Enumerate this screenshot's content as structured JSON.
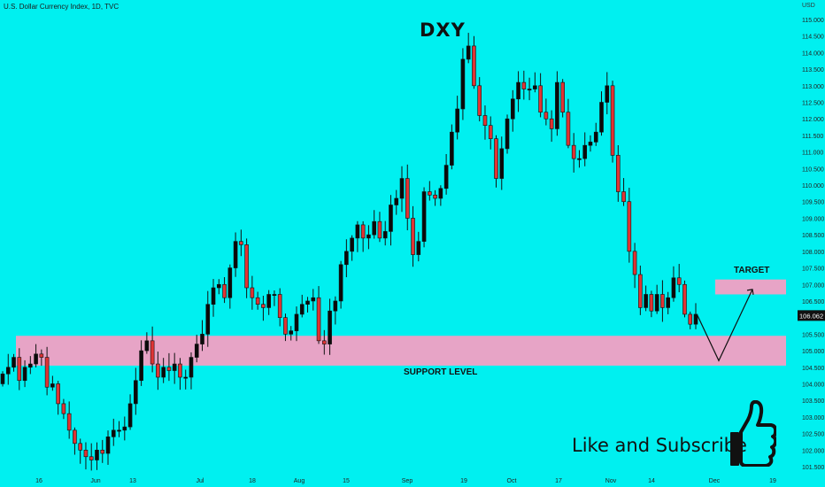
{
  "header": {
    "symbol_info": "U.S. Dollar Currency Index, 1D, TVC",
    "currency": "USD"
  },
  "title": "DXY",
  "annotations": {
    "target": "TARGET",
    "support": "SUPPORT LEVEL",
    "cta": "Like and Subscribe"
  },
  "icons": {
    "thumb": "thumbs-up-icon"
  },
  "colors": {
    "background": "#00f0f0",
    "zone": "#e7a4c6",
    "up": "#0a0a0a",
    "down": "#e03434",
    "price_tag": "#111111"
  },
  "chart_data": {
    "type": "candlestick",
    "title": "DXY",
    "ylabel": "USD",
    "ylim": [
      101.25,
      115.25
    ],
    "y_ticks": [
      "115.000",
      "114.500",
      "114.000",
      "113.500",
      "113.000",
      "112.500",
      "112.000",
      "111.500",
      "111.000",
      "110.500",
      "110.000",
      "109.500",
      "109.000",
      "108.500",
      "108.000",
      "107.500",
      "107.000",
      "106.500",
      "106.000",
      "105.500",
      "105.000",
      "104.500",
      "104.000",
      "103.500",
      "103.000",
      "102.500",
      "102.000",
      "101.500"
    ],
    "x_ticks": [
      "16",
      "Jun",
      "13",
      "Jul",
      "18",
      "Aug",
      "15",
      "Sep",
      "19",
      "Oct",
      "17",
      "Nov",
      "14",
      "Dec",
      "19"
    ],
    "current_price": "106.062",
    "support_zone": [
      104.55,
      105.45
    ],
    "target_zone": [
      106.7,
      107.15
    ],
    "projection": [
      106.06,
      104.7,
      106.85
    ],
    "close_prices": [
      104.3,
      104.5,
      104.8,
      104.1,
      104.5,
      104.6,
      104.9,
      104.8,
      103.9,
      104.0,
      103.4,
      103.1,
      102.6,
      102.2,
      102.0,
      101.8,
      101.7,
      102.0,
      101.9,
      102.4,
      102.6,
      102.6,
      102.7,
      103.4,
      104.1,
      105.0,
      105.3,
      104.6,
      104.2,
      104.5,
      104.4,
      104.6,
      104.2,
      104.2,
      104.8,
      105.2,
      105.5,
      106.4,
      106.9,
      107.0,
      106.6,
      107.5,
      108.3,
      108.2,
      106.9,
      106.6,
      106.4,
      106.3,
      106.7,
      106.7,
      106.0,
      105.5,
      105.6,
      106.1,
      106.4,
      106.5,
      106.6,
      105.3,
      105.2,
      106.2,
      106.5,
      107.6,
      108.0,
      108.4,
      108.8,
      108.4,
      108.5,
      108.9,
      108.4,
      108.6,
      109.4,
      109.6,
      110.2,
      109.0,
      107.9,
      108.3,
      109.8,
      109.7,
      109.6,
      109.9,
      110.6,
      111.6,
      112.3,
      113.8,
      114.2,
      113.0,
      112.1,
      111.8,
      111.4,
      110.2,
      111.1,
      112.0,
      112.6,
      113.1,
      112.9,
      112.9,
      113.0,
      112.2,
      112.0,
      111.7,
      113.1,
      112.2,
      111.2,
      110.8,
      110.8,
      111.2,
      111.3,
      111.6,
      112.5,
      113.0,
      110.9,
      109.8,
      109.5,
      108.0,
      107.3,
      106.3,
      106.7,
      106.2,
      106.7,
      106.3,
      106.6,
      107.2,
      107.0,
      106.1,
      105.8,
      106.1
    ]
  }
}
